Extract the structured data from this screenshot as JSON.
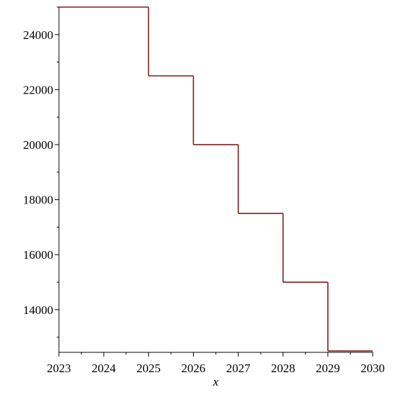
{
  "chart_data": {
    "type": "line",
    "step": true,
    "title": "",
    "xlabel": "x",
    "ylabel": "",
    "xlim": [
      2023,
      2030
    ],
    "ylim": [
      12450,
      25000
    ],
    "x_ticks": [
      2023,
      2024,
      2025,
      2026,
      2027,
      2028,
      2029,
      2030
    ],
    "x_tick_labels": [
      "2023",
      "2024",
      "2025",
      "2026",
      "2027",
      "2028",
      "2029",
      "2030"
    ],
    "y_ticks": [
      14000,
      16000,
      18000,
      20000,
      22000,
      24000
    ],
    "y_tick_labels": [
      "14000",
      "16000",
      "18000",
      "20000",
      "22000",
      "24000"
    ],
    "grid": false,
    "legend": "none",
    "series": [
      {
        "color": "#7a1f1f",
        "segments": [
          {
            "x_start": 2023,
            "x_end": 2025,
            "y": 25000
          },
          {
            "x_start": 2025,
            "x_end": 2026,
            "y": 22500
          },
          {
            "x_start": 2026,
            "x_end": 2027,
            "y": 20000
          },
          {
            "x_start": 2027,
            "x_end": 2028,
            "y": 17500
          },
          {
            "x_start": 2028,
            "x_end": 2029,
            "y": 15000
          },
          {
            "x_start": 2029,
            "x_end": 2030,
            "y": 12500
          }
        ]
      }
    ]
  }
}
